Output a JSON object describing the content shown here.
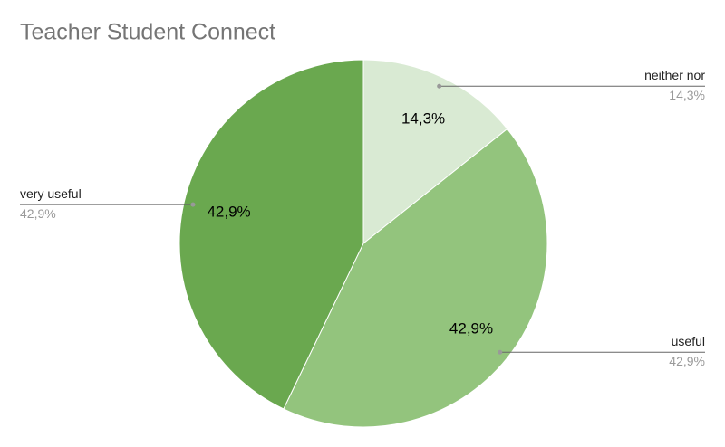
{
  "chart_data": {
    "type": "pie",
    "title": "Teacher Student Connect",
    "categories": [
      "neither nor",
      "useful",
      "very useful"
    ],
    "values": [
      14.3,
      42.9,
      42.9
    ],
    "value_labels": [
      "14,3%",
      "42,9%",
      "42,9%"
    ],
    "colors": [
      "#d9ead3",
      "#93c47d",
      "#6aa84f"
    ]
  }
}
